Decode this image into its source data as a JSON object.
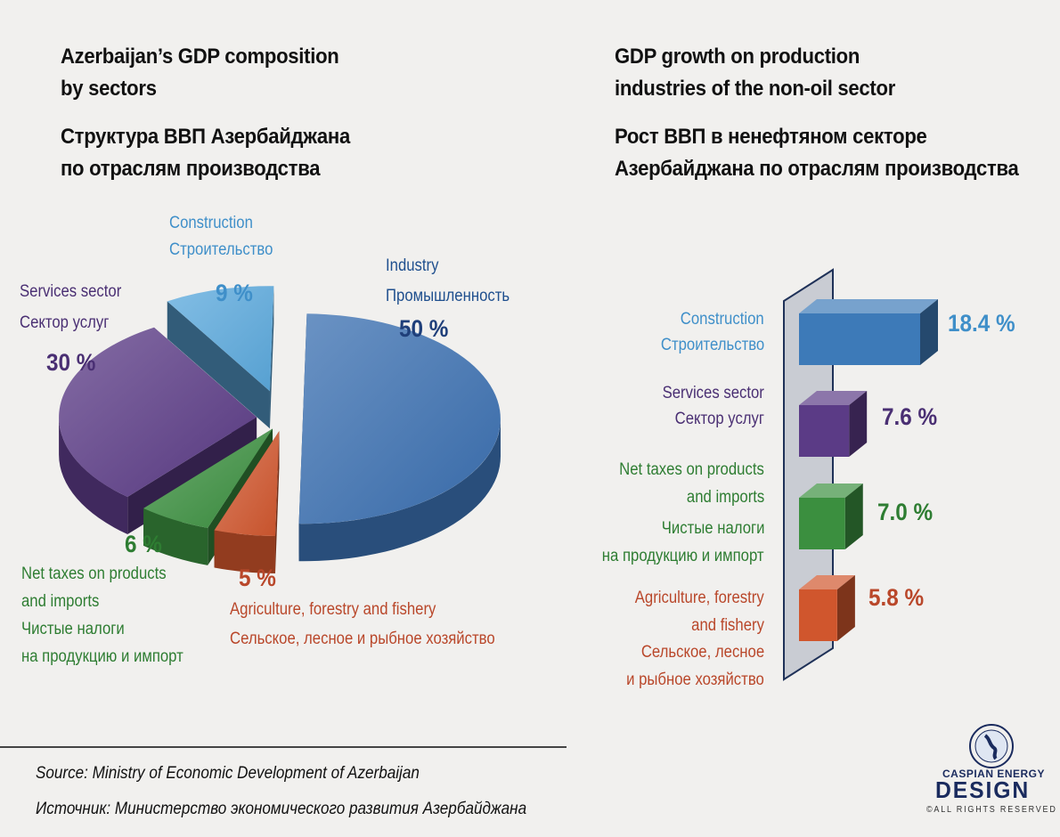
{
  "left_title": {
    "en_line1": "Azerbaijan’s GDP composition",
    "en_line2": "by sectors",
    "ru_line1": "Структура ВВП Азербайджана",
    "ru_line2": "по отраслям производства"
  },
  "right_title": {
    "en_line1": "GDP growth on production",
    "en_line2": "industries of the non-oil sector",
    "ru_line1": "Рост ВВП в ненефтяном секторе",
    "ru_line2": "Азербайджана по отраслям производства"
  },
  "chart_data": [
    {
      "type": "pie",
      "title": "Azerbaijan’s GDP composition by sectors",
      "slices": [
        {
          "key": "industry",
          "en": "Industry",
          "ru": "Промышленность",
          "value": 50,
          "label": "50 %",
          "color": "#3a6fb0"
        },
        {
          "key": "agriculture",
          "en": "Agriculture, forestry and fishery",
          "ru": "Сельское, лесное и рыбное хозяйство",
          "value": 5,
          "label": "5 %",
          "color": "#d0562d"
        },
        {
          "key": "taxes",
          "en1": "Net taxes on products",
          "en2": "and imports",
          "ru1": "Чистые налоги",
          "ru2": "на продукцию и импорт",
          "value": 6,
          "label": "6 %",
          "color": "#3b8f3f"
        },
        {
          "key": "services",
          "en": "Services sector",
          "ru": "Сектор услуг",
          "value": 30,
          "label": "30 %",
          "color": "#5b3b86"
        },
        {
          "key": "construction",
          "en": "Construction",
          "ru": "Строительство",
          "value": 9,
          "label": "9 %",
          "color": "#5aa8dc"
        }
      ]
    },
    {
      "type": "bar",
      "title": "GDP growth on production industries of the non-oil sector",
      "unit": "%",
      "bars": [
        {
          "key": "construction",
          "en": "Construction",
          "ru": "Строительство",
          "value": 18.4,
          "label": "18.4 %",
          "color": "#3d7ab8"
        },
        {
          "key": "services",
          "en": "Services sector",
          "ru": "Сектор услуг",
          "value": 7.6,
          "label": "7.6 %",
          "color": "#5b3b86"
        },
        {
          "key": "taxes",
          "en1": "Net taxes on products",
          "en2": "and imports",
          "ru1": "Чистые налоги",
          "ru2": "на продукцию и импорт",
          "value": 7.0,
          "label": "7.0 %",
          "color": "#3b8f3f"
        },
        {
          "key": "agriculture",
          "en1": "Agriculture, forestry",
          "en2": "and fishery",
          "ru1": "Сельское, лесное",
          "ru2": "и рыбное хозяйство",
          "value": 5.8,
          "label": "5.8 %",
          "color": "#d0562d"
        }
      ]
    }
  ],
  "source": {
    "en": "Source: Ministry of Economic Development of Azerbaijan",
    "ru": "Источник: Министерство экономического развития Азербайджана"
  },
  "logo": {
    "line1": "CASPIAN ENERGY",
    "line2": "DESIGN",
    "rights": "©ALL RIGHTS RESERVED"
  }
}
